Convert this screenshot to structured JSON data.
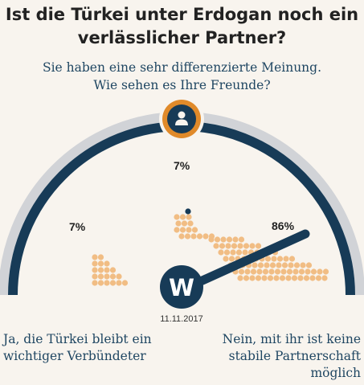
{
  "title": [
    "Ist die Türkei unter Erdogan noch ein",
    "verlässlicher Partner?"
  ],
  "subtitle": [
    "Sie haben eine sehr differenzierte Meinung.",
    "Wie sehen es Ihre Freunde?"
  ],
  "date": "11.11.2017",
  "logo_letter": "W",
  "user_icon": "person-icon",
  "results": [
    {
      "key": "yes",
      "label_lines": [
        "Ja, die Türkei bleibt ein",
        "wichtiger Verbündeter"
      ],
      "percent_label": "7%",
      "percent": 7
    },
    {
      "key": "neutral",
      "label_lines": [],
      "percent_label": "7%",
      "percent": 7
    },
    {
      "key": "no",
      "label_lines": [
        "Nein, mit ihr ist keine",
        "stabile Partnerschaft",
        "möglich"
      ],
      "percent_label": "86%",
      "percent": 86
    }
  ],
  "needle_value": 86,
  "colors": {
    "background": "#f8f4ee",
    "arc_navy": "#173b57",
    "arc_grey": "#d1d3d7",
    "dots": "#f1bd84",
    "icon_ring": "#e08a2a",
    "text_blue": "#1f4662"
  }
}
